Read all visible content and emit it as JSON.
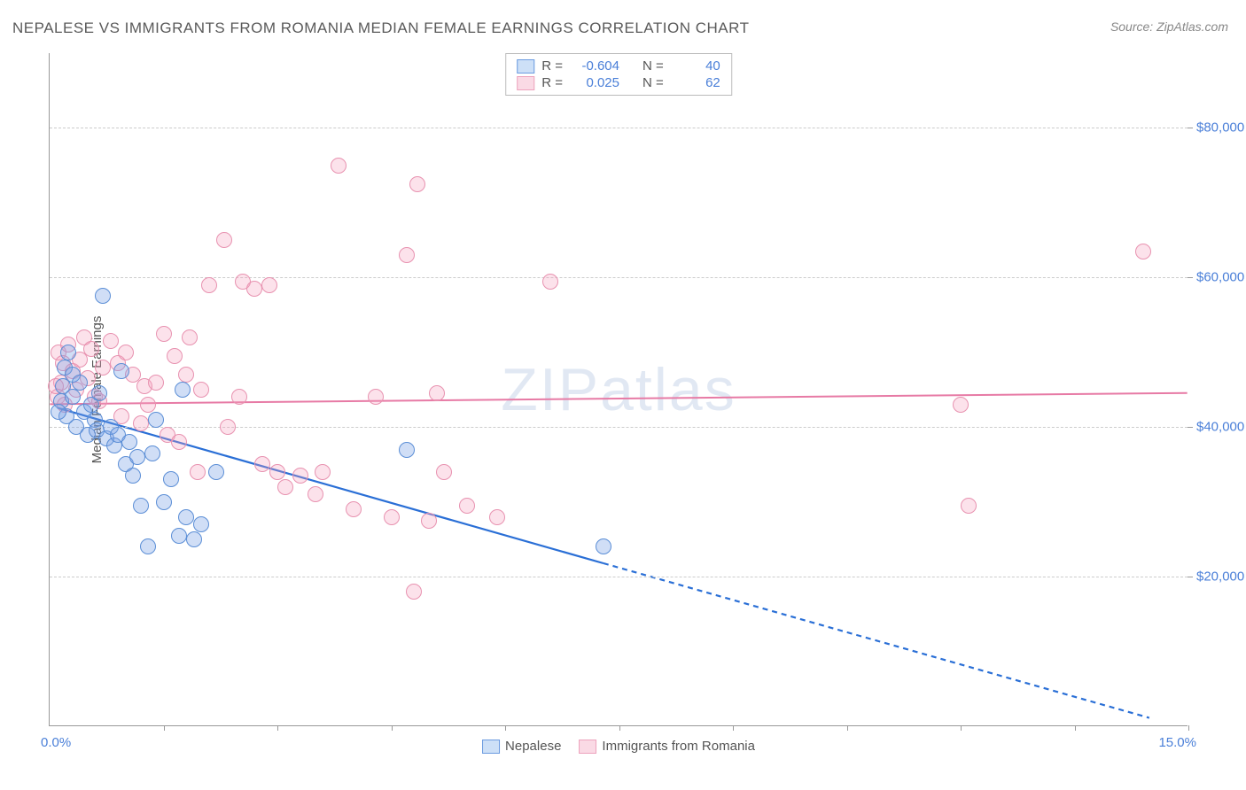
{
  "title": "NEPALESE VS IMMIGRANTS FROM ROMANIA MEDIAN FEMALE EARNINGS CORRELATION CHART",
  "source": "Source: ZipAtlas.com",
  "y_axis_title": "Median Female Earnings",
  "watermark": "ZIPatlas",
  "chart": {
    "type": "scatter",
    "background_color": "#ffffff",
    "grid_color": "#cccccc",
    "axis_color": "#999999",
    "tick_label_color": "#4a7fd8",
    "x_min": 0.0,
    "x_max": 15.0,
    "x_min_label": "0.0%",
    "x_max_label": "15.0%",
    "x_tick_positions": [
      1.5,
      3.0,
      4.5,
      6.0,
      7.5,
      9.0,
      10.5,
      12.0,
      13.5,
      15.0
    ],
    "y_min": 0,
    "y_max": 90000,
    "y_ticks": [
      {
        "v": 20000,
        "label": "$20,000"
      },
      {
        "v": 40000,
        "label": "$40,000"
      },
      {
        "v": 60000,
        "label": "$60,000"
      },
      {
        "v": 80000,
        "label": "$80,000"
      }
    ],
    "marker_radius": 9,
    "marker_border_width": 1
  },
  "series": {
    "s1": {
      "name": "Nepalese",
      "fill_color": "rgba(120,160,230,0.35)",
      "stroke_color": "#5b8ed6",
      "swatch_fill": "#cde0f7",
      "swatch_border": "#6b9be0",
      "R": "-0.604",
      "N": "40",
      "trend": {
        "x1": 0.1,
        "y1": 42500,
        "x_solid_end": 7.3,
        "y_solid_end": 21700,
        "x2": 14.5,
        "y2": 1000,
        "color": "#2a6fd6",
        "width": 2.2,
        "dash": "6,5"
      },
      "points": [
        {
          "x": 0.15,
          "y": 43500
        },
        {
          "x": 0.18,
          "y": 45500
        },
        {
          "x": 0.2,
          "y": 48000
        },
        {
          "x": 0.25,
          "y": 50000
        },
        {
          "x": 0.3,
          "y": 47000
        },
        {
          "x": 0.3,
          "y": 44000
        },
        {
          "x": 0.35,
          "y": 40000
        },
        {
          "x": 0.4,
          "y": 46000
        },
        {
          "x": 0.45,
          "y": 42000
        },
        {
          "x": 0.5,
          "y": 39000
        },
        {
          "x": 0.6,
          "y": 41000
        },
        {
          "x": 0.62,
          "y": 39500
        },
        {
          "x": 0.7,
          "y": 57500
        },
        {
          "x": 0.75,
          "y": 38500
        },
        {
          "x": 0.8,
          "y": 40000
        },
        {
          "x": 0.85,
          "y": 37500
        },
        {
          "x": 0.9,
          "y": 39000
        },
        {
          "x": 1.0,
          "y": 35000
        },
        {
          "x": 1.05,
          "y": 38000
        },
        {
          "x": 1.1,
          "y": 33500
        },
        {
          "x": 1.15,
          "y": 36000
        },
        {
          "x": 1.2,
          "y": 29500
        },
        {
          "x": 1.3,
          "y": 24000
        },
        {
          "x": 1.4,
          "y": 41000
        },
        {
          "x": 1.5,
          "y": 30000
        },
        {
          "x": 1.6,
          "y": 33000
        },
        {
          "x": 1.7,
          "y": 25500
        },
        {
          "x": 1.75,
          "y": 45000
        },
        {
          "x": 1.8,
          "y": 28000
        },
        {
          "x": 1.9,
          "y": 25000
        },
        {
          "x": 2.0,
          "y": 27000
        },
        {
          "x": 2.2,
          "y": 34000
        },
        {
          "x": 0.55,
          "y": 43000
        },
        {
          "x": 0.95,
          "y": 47500
        },
        {
          "x": 1.35,
          "y": 36500
        },
        {
          "x": 0.22,
          "y": 41500
        },
        {
          "x": 4.7,
          "y": 37000
        },
        {
          "x": 7.3,
          "y": 24000
        },
        {
          "x": 0.65,
          "y": 44500
        },
        {
          "x": 0.12,
          "y": 42000
        }
      ]
    },
    "s2": {
      "name": "Immigrants from Romania",
      "fill_color": "rgba(245,160,190,0.30)",
      "stroke_color": "#e892b0",
      "swatch_fill": "#fadae5",
      "swatch_border": "#eda3bd",
      "R": "0.025",
      "N": "62",
      "trend": {
        "x1": 0.0,
        "y1": 43000,
        "x_solid_end": 15.0,
        "y_solid_end": 44500,
        "x2": 15.0,
        "y2": 44500,
        "color": "#e77aa5",
        "width": 2.0,
        "dash": ""
      },
      "points": [
        {
          "x": 0.1,
          "y": 44000
        },
        {
          "x": 0.12,
          "y": 50000
        },
        {
          "x": 0.15,
          "y": 46000
        },
        {
          "x": 0.18,
          "y": 48500
        },
        {
          "x": 0.2,
          "y": 43000
        },
        {
          "x": 0.25,
          "y": 51000
        },
        {
          "x": 0.3,
          "y": 47500
        },
        {
          "x": 0.35,
          "y": 45000
        },
        {
          "x": 0.4,
          "y": 49000
        },
        {
          "x": 0.45,
          "y": 52000
        },
        {
          "x": 0.5,
          "y": 46500
        },
        {
          "x": 0.55,
          "y": 50500
        },
        {
          "x": 0.6,
          "y": 44000
        },
        {
          "x": 0.7,
          "y": 48000
        },
        {
          "x": 0.8,
          "y": 51500
        },
        {
          "x": 0.9,
          "y": 48500
        },
        {
          "x": 1.0,
          "y": 50000
        },
        {
          "x": 1.1,
          "y": 47000
        },
        {
          "x": 1.2,
          "y": 40500
        },
        {
          "x": 1.25,
          "y": 45500
        },
        {
          "x": 1.3,
          "y": 43000
        },
        {
          "x": 1.4,
          "y": 46000
        },
        {
          "x": 1.5,
          "y": 52500
        },
        {
          "x": 1.55,
          "y": 39000
        },
        {
          "x": 1.7,
          "y": 38000
        },
        {
          "x": 1.8,
          "y": 47000
        },
        {
          "x": 1.85,
          "y": 52000
        },
        {
          "x": 1.95,
          "y": 34000
        },
        {
          "x": 2.0,
          "y": 45000
        },
        {
          "x": 2.1,
          "y": 59000
        },
        {
          "x": 2.3,
          "y": 65000
        },
        {
          "x": 2.35,
          "y": 40000
        },
        {
          "x": 2.5,
          "y": 44000
        },
        {
          "x": 2.55,
          "y": 59500
        },
        {
          "x": 2.8,
          "y": 35000
        },
        {
          "x": 2.9,
          "y": 59000
        },
        {
          "x": 3.0,
          "y": 34000
        },
        {
          "x": 3.1,
          "y": 32000
        },
        {
          "x": 3.3,
          "y": 33500
        },
        {
          "x": 3.5,
          "y": 31000
        },
        {
          "x": 3.6,
          "y": 34000
        },
        {
          "x": 3.8,
          "y": 75000
        },
        {
          "x": 4.0,
          "y": 29000
        },
        {
          "x": 4.3,
          "y": 44000
        },
        {
          "x": 4.5,
          "y": 28000
        },
        {
          "x": 4.7,
          "y": 63000
        },
        {
          "x": 4.8,
          "y": 18000
        },
        {
          "x": 4.85,
          "y": 72500
        },
        {
          "x": 5.0,
          "y": 27500
        },
        {
          "x": 5.1,
          "y": 44500
        },
        {
          "x": 5.2,
          "y": 34000
        },
        {
          "x": 5.5,
          "y": 29500
        },
        {
          "x": 5.9,
          "y": 28000
        },
        {
          "x": 6.6,
          "y": 59500
        },
        {
          "x": 12.0,
          "y": 43000
        },
        {
          "x": 12.1,
          "y": 29500
        },
        {
          "x": 14.4,
          "y": 63500
        },
        {
          "x": 0.65,
          "y": 43500
        },
        {
          "x": 0.95,
          "y": 41500
        },
        {
          "x": 1.65,
          "y": 49500
        },
        {
          "x": 2.7,
          "y": 58500
        },
        {
          "x": 0.08,
          "y": 45500
        }
      ]
    }
  },
  "legend_bottom": {
    "s1": "Nepalese",
    "s2": "Immigrants from Romania"
  },
  "legend_top_labels": {
    "R": "R =",
    "N": "N ="
  }
}
